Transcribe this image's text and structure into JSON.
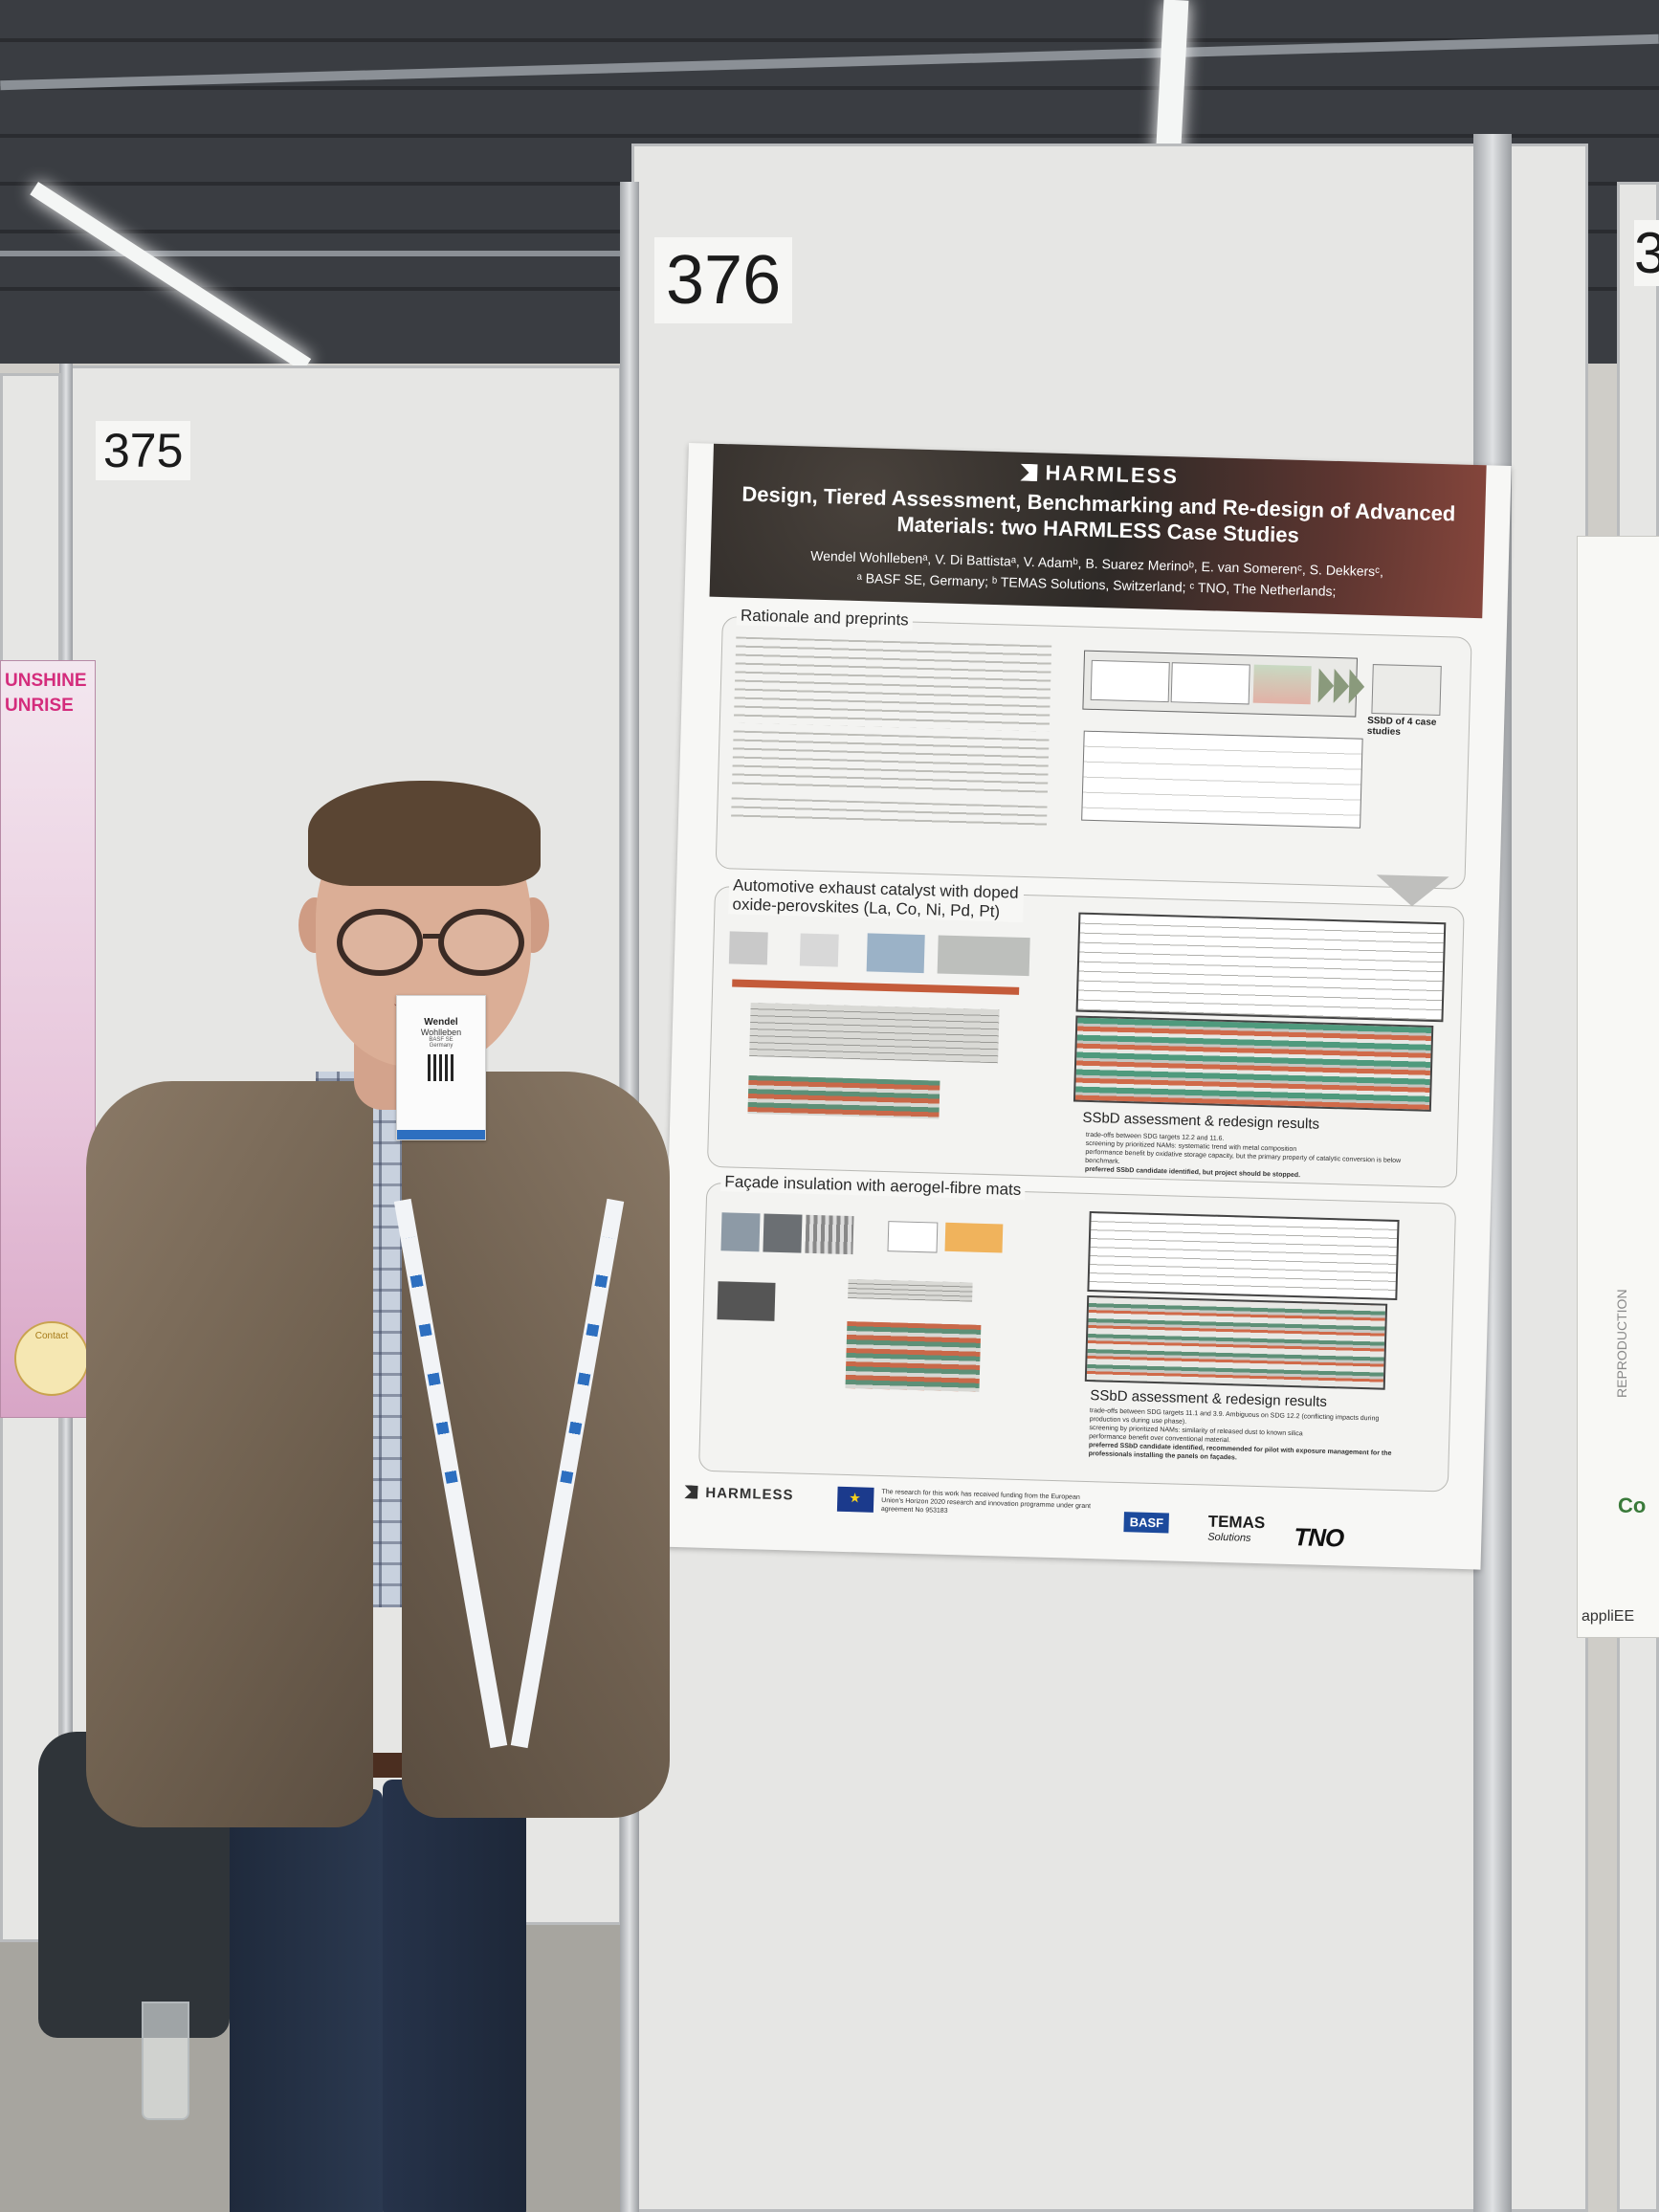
{
  "booths": {
    "left": "375",
    "center": "376",
    "right": "3"
  },
  "neighbor_left": {
    "title_1": "UNSHINE",
    "title_2": "UNRISE",
    "contact": "Contact"
  },
  "neighbor_right": {
    "side_text": "REPRODUCTION",
    "co": "Co",
    "logo": "appliEE"
  },
  "poster": {
    "brand": "HARMLESS",
    "title": "Design, Tiered Assessment, Benchmarking and Re-design of Advanced Materials: two HARMLESS Case Studies",
    "authors": "Wendel Wohllebenᵃ, V. Di Battistaᵃ, V. Adamᵇ, B. Suarez Merinoᵇ, E. van Somerenᶜ, S. Dekkersᶜ,",
    "affiliations": "ᵃ BASF SE, Germany; ᵇ TEMAS Solutions, Switzerland; ᶜ TNO, The Netherlands;",
    "sections": [
      {
        "title": "Rationale and preprints",
        "caption": "SSbD of 4 case studies"
      },
      {
        "title": "Automotive exhaust catalyst with doped oxide-perovskites (La, Co, Ni, Pd, Pt)",
        "result_title": "SSbD assessment & redesign results",
        "result_points": [
          "trade-offs between SDG targets 12.2 and 11.6.",
          "screening by prioritized NAMs: systematic trend with metal composition",
          "performance benefit by oxidative storage capacity, but the primary property of catalytic conversion is below benchmark.",
          "preferred SSbD candidate identified, but project should be stopped."
        ]
      },
      {
        "title": "Façade insulation with aerogel-fibre mats",
        "result_title": "SSbD assessment & redesign results",
        "result_points": [
          "trade-offs between SDG targets 11.1 and 3.9. Ambiguous on SDG 12.2 (conflicting impacts during production vs during use phase).",
          "screening by prioritized NAMs: similarity of released dust to known silica",
          "performance benefit over conventional material.",
          "preferred SSbD candidate identified, recommended for pilot with exposure management for the professionals installing the panels on façades."
        ]
      }
    ],
    "footer": {
      "brand": "HARMLESS",
      "funding": "The research for this work has received funding from the European Union's Horizon 2020 research and innovation programme under grant agreement No 953183",
      "basf": "BASF",
      "temas": "TEMAS",
      "temas_sub": "Solutions",
      "tno": "TNO"
    }
  },
  "badge": {
    "first": "Wendel",
    "last": "Wohlleben",
    "org": "BASF SE",
    "country": "Germany"
  },
  "colors": {
    "ceiling": "#3a3d42",
    "panel": "#e6e6e4",
    "poster_header_dark": "#2e2a27",
    "poster_header_red": "#86463c",
    "jacket": "#7a6a58",
    "lanyard_accent": "#2d6fc0"
  }
}
